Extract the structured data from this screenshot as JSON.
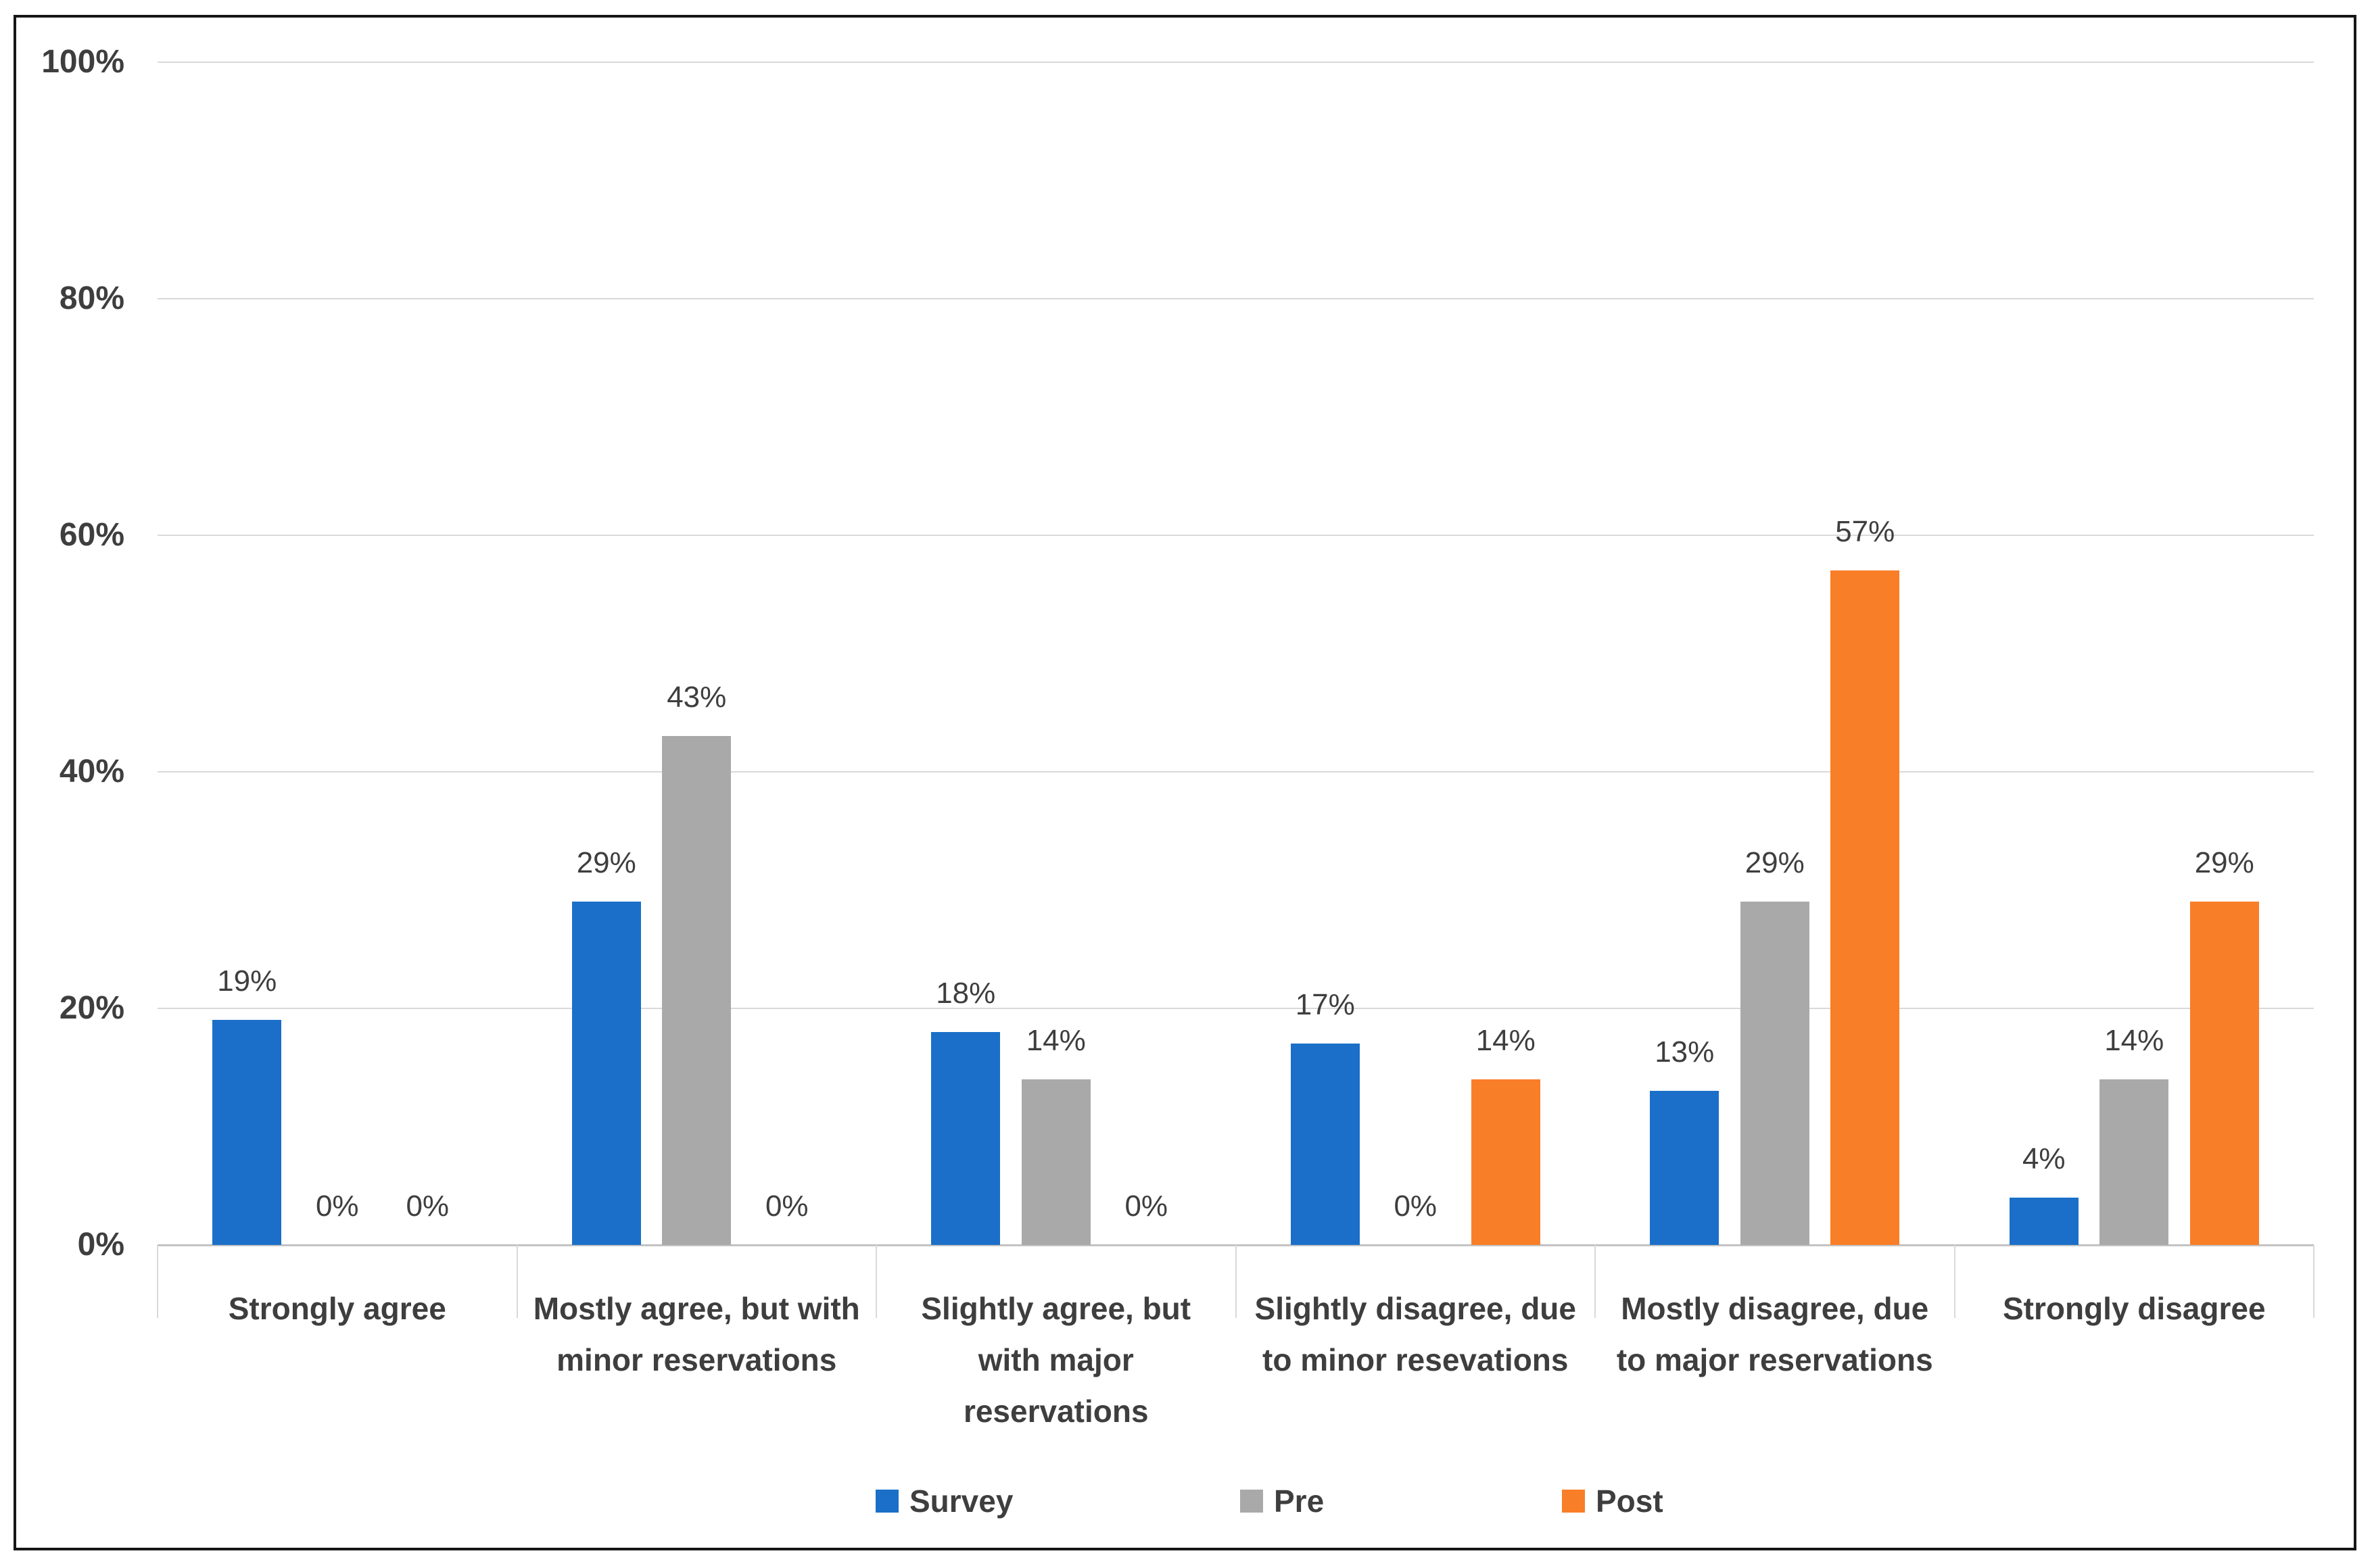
{
  "chart_data": {
    "type": "bar",
    "title": "",
    "categories": [
      "Strongly agree",
      "Mostly agree, but with minor reservations",
      "Slightly agree, but with major reservations",
      "Slightly disagree, due to minor resevations",
      "Mostly disagree, due to major reservations",
      "Strongly disagree"
    ],
    "series": [
      {
        "name": "Survey",
        "color": "#1B6FC8",
        "values": [
          19,
          29,
          18,
          17,
          13,
          4
        ]
      },
      {
        "name": "Pre",
        "color": "#A9A9A9",
        "values": [
          0,
          43,
          14,
          0,
          29,
          14
        ]
      },
      {
        "name": "Post",
        "color": "#F97E28",
        "values": [
          0,
          0,
          0,
          14,
          57,
          29
        ]
      }
    ],
    "data_labels": {
      "visible": true,
      "suffix": "%"
    },
    "y_axis": {
      "min": 0,
      "max": 100,
      "step": 20,
      "tick_labels": [
        "100%",
        "80%",
        "60%",
        "40%",
        "20%",
        "0%"
      ]
    },
    "grid": true,
    "legend_position": "bottom",
    "legend": [
      "Survey",
      "Pre",
      "Post"
    ]
  },
  "styles": {
    "bar_blue": "#1B6FC8",
    "bar_gray": "#A9A9A9",
    "bar_orange": "#F97E28",
    "gridline_color": "#D9D9D9",
    "axis_line_color": "#C3C3C3",
    "text_color": "#3E3E3E",
    "figure_border_color": "#161616",
    "background": "#FFFFFF"
  }
}
